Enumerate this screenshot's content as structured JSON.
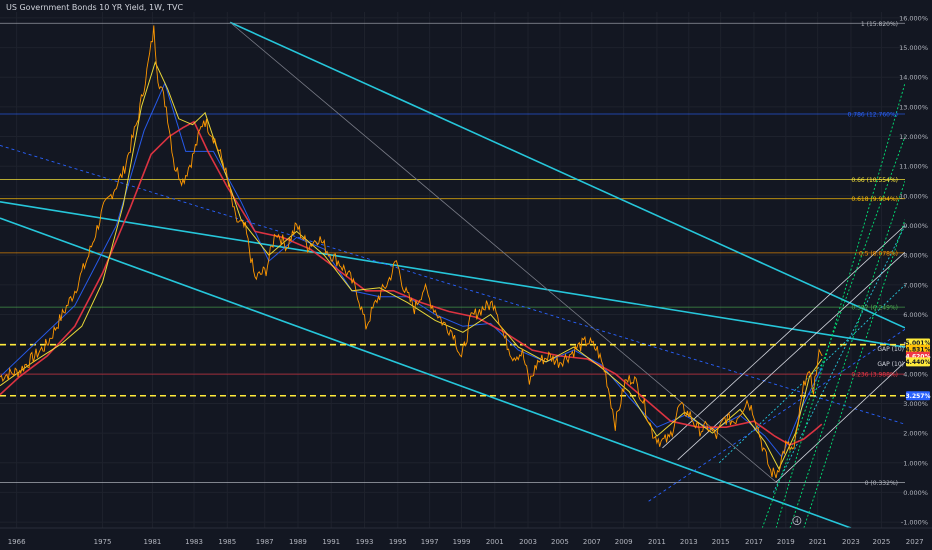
{
  "chart_title": "US Government Bonds 10 YR Yield, 1W, TVC",
  "chart_data": {
    "type": "line",
    "title": "US Government Bonds 10 YR Yield, 1W, TVC",
    "xlim": [
      1964.6,
      2029.9
    ],
    "ylim": [
      -1.2,
      16.2
    ],
    "x_tick_labels": [
      "1966",
      "1975",
      "1981",
      "1983",
      "1985",
      "1987",
      "1989",
      "1991",
      "1993",
      "1995",
      "1997",
      "1999",
      "2001",
      "2003",
      "2005",
      "2007",
      "2009",
      "2011",
      "2013",
      "2015",
      "2017",
      "2019",
      "2021",
      "2023",
      "2025",
      "2027",
      "2029"
    ],
    "x_tick_values": [
      1965.8,
      1972.0,
      1975.6,
      1978.6,
      1981.0,
      1983.7,
      1986.1,
      1988.5,
      1990.9,
      1993.3,
      1995.6,
      1997.9,
      2000.3,
      2002.7,
      2005.0,
      2007.3,
      2009.6,
      2012.0,
      2014.3,
      2016.6,
      2019.0,
      2021.3,
      2023.6,
      2026.0,
      2028.2,
      2030.6,
      2033.0
    ],
    "y_tick_labels": [
      "16.000%",
      "15.000%",
      "14.000%",
      "13.000%",
      "12.000%",
      "11.000%",
      "10.000%",
      "9.000%",
      "8.000%",
      "7.000%",
      "6.000%",
      "5.000%",
      "4.000%",
      "3.000%",
      "2.000%",
      "1.000%",
      "0.000%",
      "-1.000%"
    ],
    "y_tick_values": [
      16,
      15,
      14,
      13,
      12,
      11,
      10,
      9,
      8,
      7,
      6,
      5,
      4,
      3,
      2,
      1,
      0,
      -1
    ],
    "price_series": {
      "name": "",
      "color": "#ff9800",
      "points": [
        [
          1964.6,
          3.9
        ],
        [
          1966,
          4.1
        ],
        [
          1968,
          5.0
        ],
        [
          1970,
          6.8
        ],
        [
          1971,
          8.0
        ],
        [
          1972,
          9.5
        ],
        [
          1973.5,
          10.8
        ],
        [
          1974.5,
          12.5
        ],
        [
          1975.2,
          14.2
        ],
        [
          1975.7,
          15.6
        ],
        [
          1976.0,
          14.0
        ],
        [
          1976.6,
          13.0
        ],
        [
          1977.2,
          11.0
        ],
        [
          1977.8,
          10.5
        ],
        [
          1978.5,
          11.3
        ],
        [
          1979.3,
          12.6
        ],
        [
          1980.0,
          12.0
        ],
        [
          1980.8,
          11.0
        ],
        [
          1981.6,
          9.2
        ],
        [
          1982.3,
          8.9
        ],
        [
          1983.0,
          7.2
        ],
        [
          1983.8,
          7.5
        ],
        [
          1984.5,
          8.8
        ],
        [
          1985.3,
          8.3
        ],
        [
          1986.0,
          9.0
        ],
        [
          1986.8,
          8.3
        ],
        [
          1987.6,
          8.6
        ],
        [
          1988.3,
          8.1
        ],
        [
          1989.0,
          7.8
        ],
        [
          1989.8,
          7.3
        ],
        [
          1990.4,
          6.7
        ],
        [
          1991.0,
          5.6
        ],
        [
          1991.8,
          6.5
        ],
        [
          1992.6,
          7.1
        ],
        [
          1993.2,
          7.8
        ],
        [
          1993.8,
          6.8
        ],
        [
          1994.5,
          6.2
        ],
        [
          1995.2,
          6.9
        ],
        [
          1995.8,
          6.3
        ],
        [
          1996.6,
          5.7
        ],
        [
          1997.3,
          5.4
        ],
        [
          1997.9,
          4.5
        ],
        [
          1998.6,
          5.9
        ],
        [
          1999.4,
          6.2
        ],
        [
          2000.3,
          6.4
        ],
        [
          2001.0,
          5.2
        ],
        [
          2001.6,
          4.6
        ],
        [
          2002.3,
          4.7
        ],
        [
          2002.8,
          3.7
        ],
        [
          2003.4,
          4.4
        ],
        [
          2004.2,
          4.6
        ],
        [
          2004.9,
          4.4
        ],
        [
          2005.6,
          4.6
        ],
        [
          2006.3,
          4.9
        ],
        [
          2007.0,
          5.1
        ],
        [
          2007.7,
          4.8
        ],
        [
          2008.3,
          4.0
        ],
        [
          2009.0,
          2.3
        ],
        [
          2009.7,
          3.7
        ],
        [
          2010.3,
          3.9
        ],
        [
          2011.0,
          3.1
        ],
        [
          2011.7,
          2.0
        ],
        [
          2012.3,
          1.7
        ],
        [
          2012.9,
          1.8
        ],
        [
          2013.6,
          2.9
        ],
        [
          2014.4,
          2.6
        ],
        [
          2015.0,
          2.1
        ],
        [
          2015.7,
          2.2
        ],
        [
          2016.3,
          1.9
        ],
        [
          2016.9,
          2.5
        ],
        [
          2017.6,
          2.4
        ],
        [
          2018.5,
          3.1
        ],
        [
          2019.0,
          2.7
        ],
        [
          2019.6,
          1.6
        ],
        [
          2020.2,
          0.7
        ],
        [
          2020.6,
          0.6
        ],
        [
          2021.3,
          1.6
        ],
        [
          2021.9,
          1.4
        ],
        [
          2022.4,
          3.0
        ],
        [
          2022.8,
          4.1
        ],
        [
          2023.3,
          3.5
        ],
        [
          2023.8,
          4.9
        ],
        [
          2023.95,
          4.62
        ]
      ]
    },
    "moving_averages": [
      {
        "name": "",
        "color": "#2962ff",
        "points": [
          [
            1964.6,
            3.9
          ],
          [
            1970,
            6.3
          ],
          [
            1973,
            9.0
          ],
          [
            1975,
            12.2
          ],
          [
            1976.5,
            13.8
          ],
          [
            1978,
            11.5
          ],
          [
            1980,
            11.5
          ],
          [
            1982,
            9.8
          ],
          [
            1984,
            7.8
          ],
          [
            1986,
            8.6
          ],
          [
            1988,
            8.2
          ],
          [
            1990,
            6.8
          ],
          [
            1992,
            6.6
          ],
          [
            1994,
            6.6
          ],
          [
            1996,
            6.0
          ],
          [
            1998,
            5.6
          ],
          [
            2000,
            5.7
          ],
          [
            2002,
            4.8
          ],
          [
            2004,
            4.4
          ],
          [
            2006,
            4.8
          ],
          [
            2008,
            4.3
          ],
          [
            2010,
            3.2
          ],
          [
            2012,
            2.2
          ],
          [
            2014,
            2.6
          ],
          [
            2016,
            2.1
          ],
          [
            2018,
            2.6
          ],
          [
            2019.8,
            1.9
          ],
          [
            2021,
            1.2
          ],
          [
            2022.5,
            2.9
          ],
          [
            2023.9,
            4.2
          ]
        ]
      },
      {
        "name": "",
        "color": "#f23645",
        "points": [
          [
            1964.6,
            3.3
          ],
          [
            1966,
            3.9
          ],
          [
            1968,
            4.6
          ],
          [
            1970,
            5.6
          ],
          [
            1972,
            7.4
          ],
          [
            1974,
            9.6
          ],
          [
            1975.5,
            11.4
          ],
          [
            1976.8,
            12.0
          ],
          [
            1977.8,
            12.3
          ],
          [
            1978.6,
            12.5
          ],
          [
            1979.6,
            11.5
          ],
          [
            1981,
            10.3
          ],
          [
            1983,
            8.8
          ],
          [
            1985,
            8.6
          ],
          [
            1987,
            8.2
          ],
          [
            1989,
            7.5
          ],
          [
            1991,
            6.8
          ],
          [
            1993,
            6.8
          ],
          [
            1995,
            6.4
          ],
          [
            1997,
            6.1
          ],
          [
            1999,
            5.9
          ],
          [
            2001,
            5.4
          ],
          [
            2003,
            4.8
          ],
          [
            2005,
            4.6
          ],
          [
            2007,
            4.5
          ],
          [
            2009,
            4.0
          ],
          [
            2011,
            3.2
          ],
          [
            2013,
            2.4
          ],
          [
            2015,
            2.2
          ],
          [
            2017,
            2.2
          ],
          [
            2019,
            2.4
          ],
          [
            2020.5,
            1.9
          ],
          [
            2021.6,
            1.6
          ],
          [
            2022.6,
            1.8
          ],
          [
            2023.4,
            2.1
          ],
          [
            2023.9,
            2.3
          ]
        ]
      },
      {
        "name": "",
        "color": "#ffeb3b",
        "points": [
          [
            1964.6,
            3.6
          ],
          [
            1967,
            4.4
          ],
          [
            1969,
            5.0
          ],
          [
            1970.5,
            5.6
          ],
          [
            1972,
            7.1
          ],
          [
            1973.5,
            9.7
          ],
          [
            1974.8,
            13.0
          ],
          [
            1975.8,
            14.5
          ],
          [
            1976.7,
            13.6
          ],
          [
            1977.5,
            12.6
          ],
          [
            1978.5,
            12.4
          ],
          [
            1979.4,
            12.8
          ],
          [
            1980.4,
            11.4
          ],
          [
            1982,
            9.2
          ],
          [
            1984,
            8.0
          ],
          [
            1986,
            8.8
          ],
          [
            1988,
            8.0
          ],
          [
            1990,
            6.8
          ],
          [
            1992,
            6.9
          ],
          [
            1994,
            6.4
          ],
          [
            1996,
            5.8
          ],
          [
            1998,
            5.4
          ],
          [
            2000,
            6.0
          ],
          [
            2002,
            4.9
          ],
          [
            2004,
            4.4
          ],
          [
            2006,
            4.9
          ],
          [
            2008,
            4.2
          ],
          [
            2010,
            3.4
          ],
          [
            2012,
            1.9
          ],
          [
            2014,
            2.7
          ],
          [
            2016,
            2.0
          ],
          [
            2018,
            2.8
          ],
          [
            2019.8,
            1.7
          ],
          [
            2020.8,
            0.8
          ],
          [
            2022,
            2.0
          ],
          [
            2023,
            3.9
          ],
          [
            2023.9,
            4.5
          ]
        ]
      }
    ],
    "horizontal_levels": [
      {
        "label": "1 (15.820%)",
        "value": 15.82,
        "color": "#b2b5be"
      },
      {
        "label": "0.786 (12.760%)",
        "value": 12.76,
        "color": "#2962ff"
      },
      {
        "label": "0.66 (10.554%)",
        "value": 10.554,
        "color": "#ffeb3b"
      },
      {
        "label": "0.618 (9.904%)",
        "value": 9.904,
        "color": "#ffc107"
      },
      {
        "label": "0.5 (8.078%)",
        "value": 8.078,
        "color": "#ff9800"
      },
      {
        "label": "0.382 (6.249%)",
        "value": 6.249,
        "color": "#4caf50"
      },
      {
        "label": "0.236 (3.988%)",
        "value": 3.988,
        "color": "#f23645"
      },
      {
        "label": "0 (0.332%)",
        "value": 0.332,
        "color": "#b2b5be"
      }
    ],
    "dashed_levels": [
      {
        "value": 4.98,
        "color": "#ffeb3b"
      },
      {
        "value": 3.26,
        "color": "#ffeb3b"
      }
    ],
    "gap_labels": [
      {
        "label": "GAP (10)",
        "value": 4.86
      },
      {
        "label": "GAP (10)",
        "value": 4.35
      }
    ],
    "price_tags": [
      {
        "label": "5.001%",
        "value": 5.04,
        "color": "#ffeb3b",
        "text_color": "#131722"
      },
      {
        "label": "4.831%",
        "value": 4.83,
        "color": "#ffc107",
        "text_color": "#131722"
      },
      {
        "label": "4.620%",
        "value": 4.59,
        "color": "#f23645",
        "text_color": "#ffffff"
      },
      {
        "label": "4.440%",
        "value": 4.4,
        "color": "#ffeb3b",
        "text_color": "#131722"
      },
      {
        "label": "3.257%",
        "value": 3.26,
        "color": "#2962ff",
        "text_color": "#ffffff"
      }
    ],
    "trend_lines": [
      {
        "style": "solid",
        "color": "#26c6da",
        "p1": [
          1964.6,
          9.8
        ],
        "p2": [
          2029.9,
          4.9
        ]
      },
      {
        "style": "solid",
        "color": "#26c6da",
        "p1": [
          1964.6,
          9.25
        ],
        "p2": [
          2026.0,
          -1.2
        ]
      },
      {
        "style": "solid",
        "color": "#26c6da",
        "p1": [
          1981.2,
          15.85
        ],
        "p2": [
          2029.9,
          5.55
        ]
      },
      {
        "style": "solid",
        "color": "#787b86",
        "p1": [
          1981.2,
          15.85
        ],
        "p2": [
          2020.6,
          0.35
        ]
      },
      {
        "style": "dashed",
        "color": "#2962ff",
        "p1": [
          1964.6,
          11.7
        ],
        "p2": [
          2029.9,
          2.3
        ]
      },
      {
        "style": "solid",
        "color": "#d1d4dc",
        "p1": [
          2012.4,
          1.5
        ],
        "p2": [
          2029.9,
          9.0
        ]
      },
      {
        "style": "solid",
        "color": "#d1d4dc",
        "p1": [
          2020.6,
          0.35
        ],
        "p2": [
          2029.9,
          4.4
        ]
      },
      {
        "style": "solid",
        "color": "#d1d4dc",
        "p1": [
          2013.5,
          1.1
        ],
        "p2": [
          2029.9,
          8.1
        ]
      },
      {
        "style": "dotted",
        "color": "#26c6da",
        "p1": [
          2020.4,
          0.0
        ],
        "p2": [
          2029.9,
          9.0
        ]
      },
      {
        "style": "dotted",
        "color": "#26c6da",
        "p1": [
          2016.5,
          1.0
        ],
        "p2": [
          2029.9,
          7.0
        ]
      },
      {
        "style": "dotted",
        "color": "#00e676",
        "p1": [
          2020.6,
          -1.2
        ],
        "p2": [
          2029.9,
          13.8
        ]
      },
      {
        "style": "dotted",
        "color": "#00e676",
        "p1": [
          2019.6,
          -1.2
        ],
        "p2": [
          2029.9,
          12.0
        ]
      },
      {
        "style": "dotted",
        "color": "#00e676",
        "p1": [
          2021.6,
          -1.2
        ],
        "p2": [
          2029.9,
          10.5
        ]
      },
      {
        "style": "dotted",
        "color": "#00e676",
        "p1": [
          2022.6,
          -1.2
        ],
        "p2": [
          2029.9,
          9.2
        ]
      },
      {
        "style": "dashed",
        "color": "#2962ff",
        "p1": [
          2011.4,
          -0.3
        ],
        "p2": [
          2029.9,
          5.5
        ]
      }
    ],
    "annotations": [
      {
        "label": "4",
        "x": 2022.1,
        "y": -0.95
      }
    ]
  }
}
